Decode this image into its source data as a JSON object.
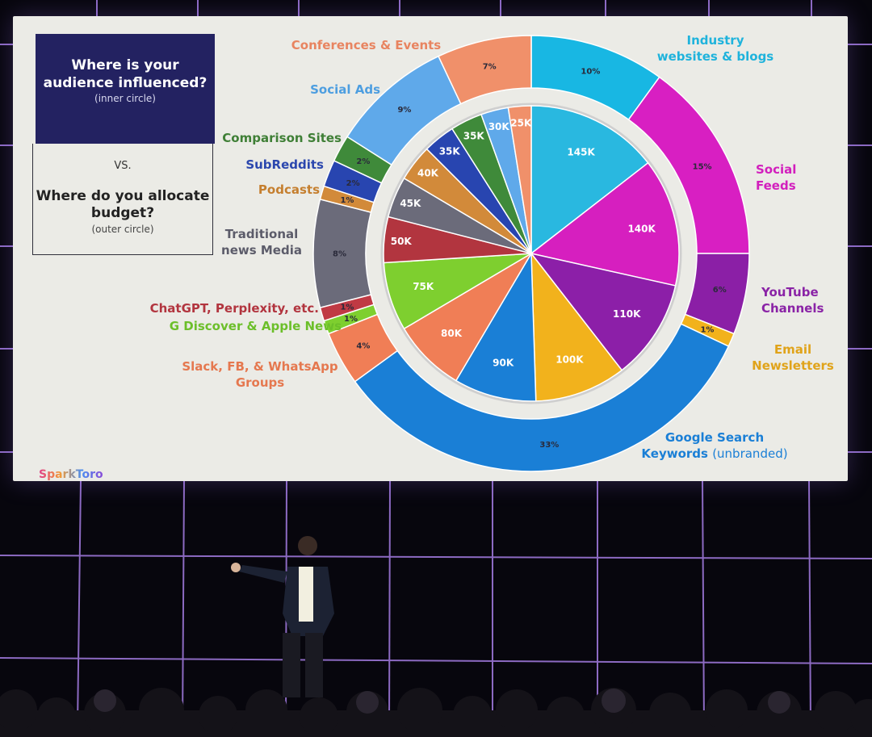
{
  "slide": {
    "q1": "Where is your audience influenced?",
    "q1_sub": "(inner circle)",
    "vs": "VS.",
    "q2": "Where do you allocate budget?",
    "q2_sub": "(outer circle)",
    "logo": "SparkToro"
  },
  "colors": {
    "slide_bg": "#ebebe6",
    "header_box": "#232261"
  },
  "chart_data": {
    "type": "pie",
    "inner_circle": {
      "slices": [
        {
          "label": "145K",
          "value": 145,
          "color": "#29b8e0"
        },
        {
          "label": "140K",
          "value": 140,
          "color": "#d61fbf"
        },
        {
          "label": "110K",
          "value": 110,
          "color": "#8c1fa8"
        },
        {
          "label": "100K",
          "value": 100,
          "color": "#f2b21c"
        },
        {
          "label": "90K",
          "value": 90,
          "color": "#1a7fd6"
        },
        {
          "label": "80K",
          "value": 80,
          "color": "#f07e56"
        },
        {
          "label": "75K",
          "value": 75,
          "color": "#7ecf2f"
        },
        {
          "label": "50K",
          "value": 50,
          "color": "#b2353f"
        },
        {
          "label": "45K",
          "value": 45,
          "color": "#6b6b7a"
        },
        {
          "label": "40K",
          "value": 40,
          "color": "#d28a3a"
        },
        {
          "label": "35K",
          "value": 35,
          "color": "#2845b0"
        },
        {
          "label": "35K",
          "value": 35,
          "color": "#3f8a3a"
        },
        {
          "label": "30K",
          "value": 30,
          "color": "#5fa9ea"
        },
        {
          "label": "25K",
          "value": 25,
          "color": "#f0906a"
        }
      ]
    },
    "outer_circle": {
      "slices": [
        {
          "label": "10%",
          "value": 10,
          "color": "#18b7e3"
        },
        {
          "label": "15%",
          "value": 15,
          "color": "#d81fc2"
        },
        {
          "label": "6%",
          "value": 6,
          "color": "#8b1fa6"
        },
        {
          "label": "1%",
          "value": 1,
          "color": "#f2b21c"
        },
        {
          "label": "33%",
          "value": 33,
          "color": "#1a7fd6"
        },
        {
          "label": "4%",
          "value": 4,
          "color": "#f07e56"
        },
        {
          "label": "1%",
          "value": 1,
          "color": "#7ecf2f"
        },
        {
          "label": "1%",
          "value": 1,
          "color": "#c03a44"
        },
        {
          "label": "8%",
          "value": 8,
          "color": "#6b6b7a"
        },
        {
          "label": "1%",
          "value": 1,
          "color": "#d28a3a"
        },
        {
          "label": "2%",
          "value": 2,
          "color": "#2845b0"
        },
        {
          "label": "2%",
          "value": 2,
          "color": "#3f8a3a"
        },
        {
          "label": "9%",
          "value": 9,
          "color": "#5fa9ea"
        },
        {
          "label": "7%",
          "value": 7,
          "color": "#f0906a"
        }
      ]
    },
    "categories": [
      {
        "name": "Industry websites & blogs",
        "color": "#1fb3dc"
      },
      {
        "name": "Social Feeds",
        "color": "#d21fbd"
      },
      {
        "name": "YouTube Channels",
        "color": "#8a23a6"
      },
      {
        "name": "Email Newsletters",
        "color": "#e0a31a"
      },
      {
        "name": "Google Search Keywords",
        "suffix": "(unbranded)",
        "color": "#1a7fd6"
      },
      {
        "name": "Slack, FB, & WhatsApp Groups",
        "color": "#e5784f"
      },
      {
        "name": "G Discover & Apple News",
        "color": "#6cbf2a"
      },
      {
        "name": "ChatGPT, Perplexity, etc.",
        "color": "#b2353f"
      },
      {
        "name": "Traditional news Media",
        "color": "#5c5c6a"
      },
      {
        "name": "Podcasts",
        "color": "#c57f2f"
      },
      {
        "name": "SubReddits",
        "color": "#2b47ae"
      },
      {
        "name": "Comparison Sites",
        "color": "#3f7f36"
      },
      {
        "name": "Social Ads",
        "color": "#4d9ee0"
      },
      {
        "name": "Conferences & Events",
        "color": "#e88460"
      }
    ]
  }
}
